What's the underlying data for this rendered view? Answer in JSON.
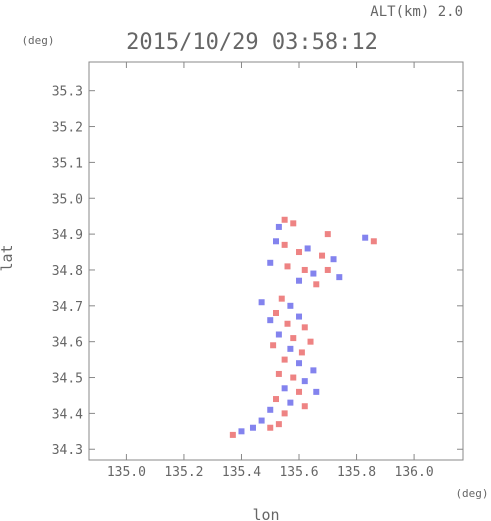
{
  "chart_data": {
    "type": "scatter",
    "title": "2015/10/29 03:58:12",
    "altitude_label": "ALT(km) 2.0",
    "xlabel": "lon",
    "ylabel": "lat",
    "x_unit": "(deg)",
    "y_unit": "(deg)",
    "xlim": [
      134.87,
      136.17
    ],
    "ylim": [
      34.27,
      35.38
    ],
    "x_ticks": [
      "135.0",
      "135.2",
      "135.4",
      "135.6",
      "135.8",
      "136.0"
    ],
    "y_ticks": [
      "34.3",
      "34.4",
      "34.5",
      "34.6",
      "34.7",
      "34.8",
      "34.9",
      "35.0",
      "35.1",
      "35.2",
      "35.3"
    ],
    "grid": false,
    "colors": {
      "positive": "#e85a5a",
      "negative": "#5a5ae8",
      "axis": "#888888"
    },
    "series": [
      {
        "values": [
          [
            135.55,
            34.94,
            1
          ],
          [
            135.58,
            34.93,
            1
          ],
          [
            135.53,
            34.92,
            -1
          ],
          [
            135.7,
            34.9,
            1
          ],
          [
            135.86,
            34.88,
            1
          ],
          [
            135.83,
            34.89,
            -1
          ],
          [
            135.52,
            34.88,
            -1
          ],
          [
            135.55,
            34.87,
            1
          ],
          [
            135.63,
            34.86,
            -1
          ],
          [
            135.6,
            34.85,
            1
          ],
          [
            135.68,
            34.84,
            1
          ],
          [
            135.72,
            34.83,
            -1
          ],
          [
            135.5,
            34.82,
            -1
          ],
          [
            135.56,
            34.81,
            1
          ],
          [
            135.62,
            34.8,
            1
          ],
          [
            135.65,
            34.79,
            -1
          ],
          [
            135.7,
            34.8,
            1
          ],
          [
            135.74,
            34.78,
            -1
          ],
          [
            135.6,
            34.77,
            -1
          ],
          [
            135.66,
            34.76,
            1
          ],
          [
            135.47,
            34.71,
            -1
          ],
          [
            135.54,
            34.72,
            1
          ],
          [
            135.57,
            34.7,
            -1
          ],
          [
            135.52,
            34.68,
            1
          ],
          [
            135.6,
            34.67,
            -1
          ],
          [
            135.5,
            34.66,
            -1
          ],
          [
            135.56,
            34.65,
            1
          ],
          [
            135.62,
            34.64,
            1
          ],
          [
            135.53,
            34.62,
            -1
          ],
          [
            135.58,
            34.61,
            1
          ],
          [
            135.64,
            34.6,
            1
          ],
          [
            135.51,
            34.59,
            1
          ],
          [
            135.57,
            34.58,
            -1
          ],
          [
            135.61,
            34.57,
            1
          ],
          [
            135.55,
            34.55,
            1
          ],
          [
            135.6,
            34.54,
            -1
          ],
          [
            135.65,
            34.52,
            -1
          ],
          [
            135.53,
            34.51,
            1
          ],
          [
            135.58,
            34.5,
            1
          ],
          [
            135.62,
            34.49,
            -1
          ],
          [
            135.55,
            34.47,
            -1
          ],
          [
            135.6,
            34.46,
            1
          ],
          [
            135.66,
            34.46,
            -1
          ],
          [
            135.52,
            34.44,
            1
          ],
          [
            135.57,
            34.43,
            -1
          ],
          [
            135.62,
            34.42,
            1
          ],
          [
            135.5,
            34.41,
            -1
          ],
          [
            135.55,
            34.4,
            1
          ],
          [
            135.47,
            34.38,
            -1
          ],
          [
            135.53,
            34.37,
            1
          ],
          [
            135.44,
            34.36,
            -1
          ],
          [
            135.4,
            34.35,
            -1
          ],
          [
            135.37,
            34.34,
            1
          ],
          [
            135.5,
            34.36,
            1
          ]
        ]
      }
    ]
  }
}
